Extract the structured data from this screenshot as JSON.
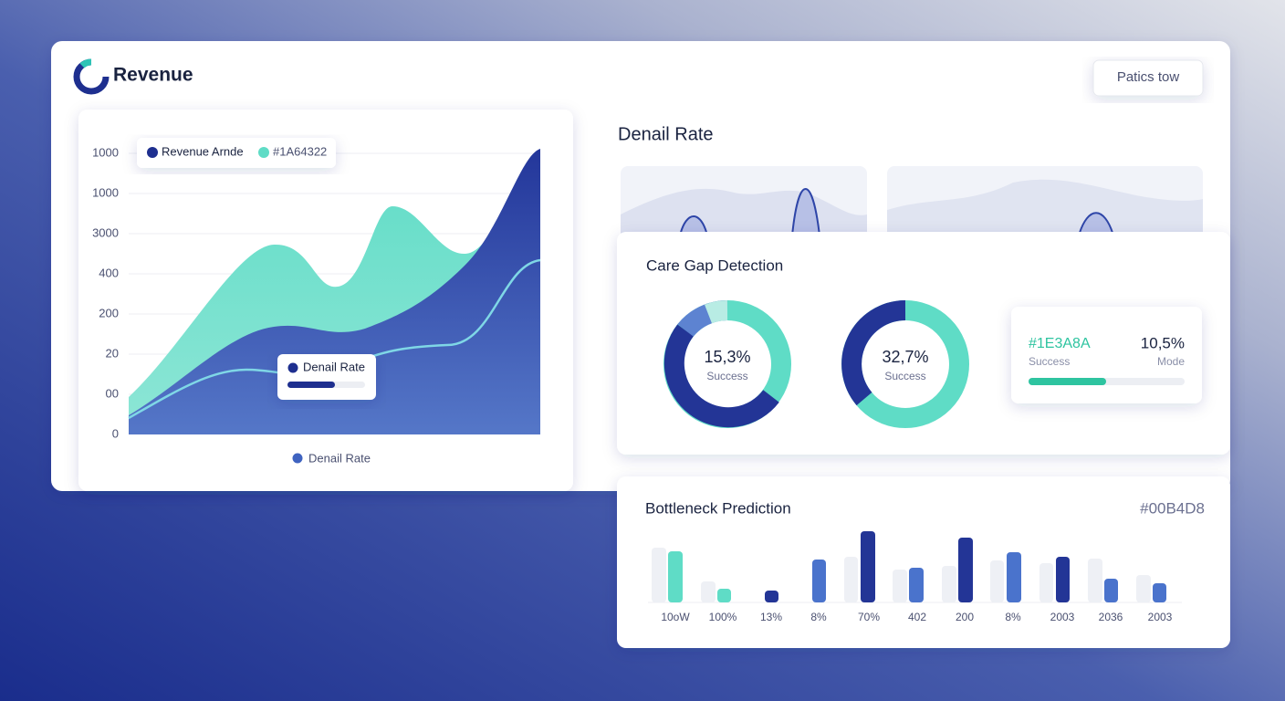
{
  "header": {
    "title": "Revenue",
    "button": "Patics tow"
  },
  "revenue_panel": {
    "y_labels": [
      "1000",
      "1000",
      "3000",
      "400",
      "200",
      "20",
      "00",
      "0"
    ],
    "legend": [
      "Revenue Arnde",
      "#1A64322"
    ],
    "tooltip": "Denail Rate",
    "footer_legend": "Denail Rate"
  },
  "denial_rate": {
    "title": "Denail Rate"
  },
  "care_gap": {
    "title": "Care Gap Detection",
    "donuts": [
      {
        "value": "15,3%",
        "label": "Success"
      },
      {
        "value": "32,7%",
        "label": "Success"
      }
    ],
    "summary": {
      "code": "#1E3A8A",
      "value": "10,5%",
      "label": "Success",
      "mode": "Mode"
    }
  },
  "bottleneck": {
    "title": "Bottleneck Prediction",
    "code": "#00B4D8",
    "labels": [
      "10oW",
      "100%",
      "13%",
      "8%",
      "70%",
      "402",
      "200",
      "8%",
      "2003",
      "2036",
      "2003"
    ]
  }
}
